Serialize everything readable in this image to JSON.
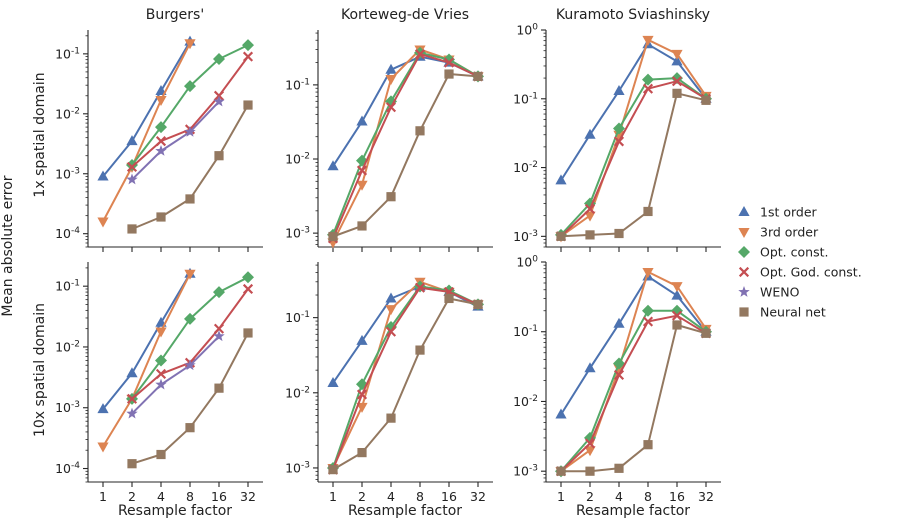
{
  "figure": {
    "ylabel_shared": "Mean absolute error",
    "row_labels": [
      "1x spatial domain",
      "10x spatial domain"
    ],
    "column_titles": [
      "Burgers'",
      "Korteweg-de Vries",
      "Kuramoto Sviashinsky"
    ],
    "xlabel": "Resample factor"
  },
  "legend": [
    {
      "name": "1st order",
      "color": "#4c72b0",
      "marker": "triangle-up"
    },
    {
      "name": "3rd order",
      "color": "#dd8452",
      "marker": "triangle-down"
    },
    {
      "name": "Opt. const.",
      "color": "#55a868",
      "marker": "diamond"
    },
    {
      "name": "Opt. God. const.",
      "color": "#c44e52",
      "marker": "x"
    },
    {
      "name": "WENO",
      "color": "#8172b3",
      "marker": "star"
    },
    {
      "name": "Neural net",
      "color": "#937860",
      "marker": "square"
    }
  ],
  "chart_data": [
    {
      "type": "line",
      "title": "Burgers'",
      "row": 0,
      "col": 0,
      "xscale": "log2",
      "yscale": "log",
      "x": [
        1,
        2,
        4,
        8,
        16,
        32
      ],
      "xticklabels": [
        "1",
        "2",
        "4",
        "8",
        "16",
        "32"
      ],
      "ylim": [
        6e-05,
        0.25
      ],
      "yticks": [
        {
          "v": 0.0001,
          "label": "10^-4"
        },
        {
          "v": 0.001,
          "label": "10^-3"
        },
        {
          "v": 0.01,
          "label": "10^-2"
        },
        {
          "v": 0.1,
          "label": "10^-1"
        }
      ],
      "series": [
        {
          "name": "1st order",
          "values": [
            0.0009,
            0.0035,
            0.024,
            0.16,
            null,
            null
          ]
        },
        {
          "name": "3rd order",
          "values": [
            0.00016,
            0.0013,
            0.017,
            0.15,
            null,
            null
          ]
        },
        {
          "name": "Opt. const.",
          "values": [
            null,
            0.0014,
            0.006,
            0.029,
            0.082,
            0.14
          ]
        },
        {
          "name": "Opt. God. const.",
          "values": [
            null,
            0.0013,
            0.0035,
            0.0055,
            0.02,
            0.09
          ]
        },
        {
          "name": "WENO",
          "values": [
            null,
            0.0008,
            0.0024,
            0.005,
            0.016,
            null
          ]
        },
        {
          "name": "Neural net",
          "values": [
            null,
            0.00012,
            0.00019,
            0.00038,
            0.002,
            0.014
          ]
        }
      ]
    },
    {
      "type": "line",
      "title": "Korteweg-de Vries",
      "row": 0,
      "col": 1,
      "xscale": "log2",
      "yscale": "log",
      "x": [
        1,
        2,
        4,
        8,
        16,
        32
      ],
      "xticklabels": [
        "1",
        "2",
        "4",
        "8",
        "16",
        "32"
      ],
      "ylim": [
        0.00065,
        0.55
      ],
      "yticks": [
        {
          "v": 0.001,
          "label": "10^-3"
        },
        {
          "v": 0.01,
          "label": "10^-2"
        },
        {
          "v": 0.1,
          "label": "10^-1"
        }
      ],
      "series": [
        {
          "name": "1st order",
          "values": [
            0.008,
            0.032,
            0.16,
            0.24,
            0.2,
            0.13
          ]
        },
        {
          "name": "3rd order",
          "values": [
            0.00075,
            0.0045,
            0.12,
            0.3,
            0.22,
            0.13
          ]
        },
        {
          "name": "Opt. const.",
          "values": [
            0.00095,
            0.0095,
            0.06,
            0.27,
            0.22,
            0.13
          ]
        },
        {
          "name": "Opt. God. const.",
          "values": [
            0.00085,
            0.007,
            0.05,
            0.26,
            0.2,
            0.13
          ]
        },
        {
          "name": "WENO",
          "values": [
            null,
            null,
            null,
            null,
            null,
            null
          ]
        },
        {
          "name": "Neural net",
          "values": [
            0.0009,
            0.00125,
            0.0031,
            0.024,
            0.14,
            0.13
          ]
        }
      ]
    },
    {
      "type": "line",
      "title": "Kuramoto Sviashinsky",
      "row": 0,
      "col": 2,
      "xscale": "log2",
      "yscale": "log",
      "x": [
        1,
        2,
        4,
        8,
        16,
        32
      ],
      "xticklabels": [
        "1",
        "2",
        "4",
        "8",
        "16",
        "32"
      ],
      "ylim": [
        0.0007,
        1.0
      ],
      "yticks": [
        {
          "v": 0.001,
          "label": "10^-3"
        },
        {
          "v": 0.01,
          "label": "10^-2"
        },
        {
          "v": 0.1,
          "label": "10^-1"
        },
        {
          "v": 1,
          "label": "10^0"
        }
      ],
      "series": [
        {
          "name": "1st order",
          "values": [
            0.0065,
            0.03,
            0.13,
            0.62,
            0.35,
            0.1
          ]
        },
        {
          "name": "3rd order",
          "values": [
            0.001,
            0.002,
            0.03,
            0.72,
            0.45,
            0.11
          ]
        },
        {
          "name": "Opt. const.",
          "values": [
            0.00105,
            0.003,
            0.037,
            0.19,
            0.2,
            0.1
          ]
        },
        {
          "name": "Opt. God. const.",
          "values": [
            0.001,
            0.0025,
            0.024,
            0.14,
            0.18,
            0.1
          ]
        },
        {
          "name": "WENO",
          "values": [
            null,
            null,
            null,
            null,
            null,
            null
          ]
        },
        {
          "name": "Neural net",
          "values": [
            0.001,
            0.00105,
            0.0011,
            0.0023,
            0.12,
            0.095
          ]
        }
      ]
    },
    {
      "type": "line",
      "title": "",
      "row": 1,
      "col": 0,
      "xscale": "log2",
      "yscale": "log",
      "x": [
        1,
        2,
        4,
        8,
        16,
        32
      ],
      "xticklabels": [
        "1",
        "2",
        "4",
        "8",
        "16",
        "32"
      ],
      "ylim": [
        6e-05,
        0.25
      ],
      "yticks": [
        {
          "v": 0.0001,
          "label": "10^-4"
        },
        {
          "v": 0.001,
          "label": "10^-3"
        },
        {
          "v": 0.01,
          "label": "10^-2"
        },
        {
          "v": 0.1,
          "label": "10^-1"
        }
      ],
      "series": [
        {
          "name": "1st order",
          "values": [
            0.00095,
            0.0037,
            0.025,
            0.16,
            null,
            null
          ]
        },
        {
          "name": "3rd order",
          "values": [
            0.00023,
            0.0014,
            0.018,
            0.16,
            null,
            null
          ]
        },
        {
          "name": "Opt. const.",
          "values": [
            null,
            0.0014,
            0.006,
            0.029,
            0.08,
            0.14
          ]
        },
        {
          "name": "Opt. God. const.",
          "values": [
            null,
            0.0014,
            0.0036,
            0.0055,
            0.02,
            0.09
          ]
        },
        {
          "name": "WENO",
          "values": [
            null,
            0.0008,
            0.0024,
            0.005,
            0.015,
            null
          ]
        },
        {
          "name": "Neural net",
          "values": [
            null,
            0.00012,
            0.00017,
            0.00047,
            0.0021,
            0.017
          ]
        }
      ]
    },
    {
      "type": "line",
      "title": "",
      "row": 1,
      "col": 1,
      "xscale": "log2",
      "yscale": "log",
      "x": [
        1,
        2,
        4,
        8,
        16,
        32
      ],
      "xticklabels": [
        "1",
        "2",
        "4",
        "8",
        "16",
        "32"
      ],
      "ylim": [
        0.00065,
        0.55
      ],
      "yticks": [
        {
          "v": 0.001,
          "label": "10^-3"
        },
        {
          "v": 0.01,
          "label": "10^-2"
        },
        {
          "v": 0.1,
          "label": "10^-1"
        }
      ],
      "series": [
        {
          "name": "1st order",
          "values": [
            0.0135,
            0.049,
            0.18,
            0.26,
            0.22,
            0.14
          ]
        },
        {
          "name": "3rd order",
          "values": [
            0.001,
            0.0065,
            0.13,
            0.3,
            0.22,
            0.15
          ]
        },
        {
          "name": "Opt. const.",
          "values": [
            0.001,
            0.013,
            0.075,
            0.26,
            0.23,
            0.15
          ]
        },
        {
          "name": "Opt. God. const.",
          "values": [
            0.00095,
            0.0095,
            0.065,
            0.25,
            0.22,
            0.15
          ]
        },
        {
          "name": "WENO",
          "values": [
            null,
            null,
            null,
            null,
            null,
            null
          ]
        },
        {
          "name": "Neural net",
          "values": [
            0.00095,
            0.0016,
            0.0046,
            0.037,
            0.18,
            0.15
          ]
        }
      ]
    },
    {
      "type": "line",
      "title": "",
      "row": 1,
      "col": 2,
      "xscale": "log2",
      "yscale": "log",
      "x": [
        1,
        2,
        4,
        8,
        16,
        32
      ],
      "xticklabels": [
        "1",
        "2",
        "4",
        "8",
        "16",
        "32"
      ],
      "ylim": [
        0.0007,
        1.0
      ],
      "yticks": [
        {
          "v": 0.001,
          "label": "10^-3"
        },
        {
          "v": 0.01,
          "label": "10^-2"
        },
        {
          "v": 0.1,
          "label": "10^-1"
        },
        {
          "v": 1,
          "label": "10^0"
        }
      ],
      "series": [
        {
          "name": "1st order",
          "values": [
            0.0065,
            0.03,
            0.13,
            0.62,
            0.33,
            0.1
          ]
        },
        {
          "name": "3rd order",
          "values": [
            0.001,
            0.002,
            0.03,
            0.72,
            0.45,
            0.11
          ]
        },
        {
          "name": "Opt. const.",
          "values": [
            0.001,
            0.003,
            0.035,
            0.2,
            0.2,
            0.1
          ]
        },
        {
          "name": "Opt. God. const.",
          "values": [
            0.001,
            0.0025,
            0.024,
            0.14,
            0.17,
            0.095
          ]
        },
        {
          "name": "WENO",
          "values": [
            null,
            null,
            null,
            null,
            null,
            null
          ]
        },
        {
          "name": "Neural net",
          "values": [
            0.001,
            0.001,
            0.0011,
            0.0024,
            0.125,
            0.095
          ]
        }
      ]
    }
  ]
}
